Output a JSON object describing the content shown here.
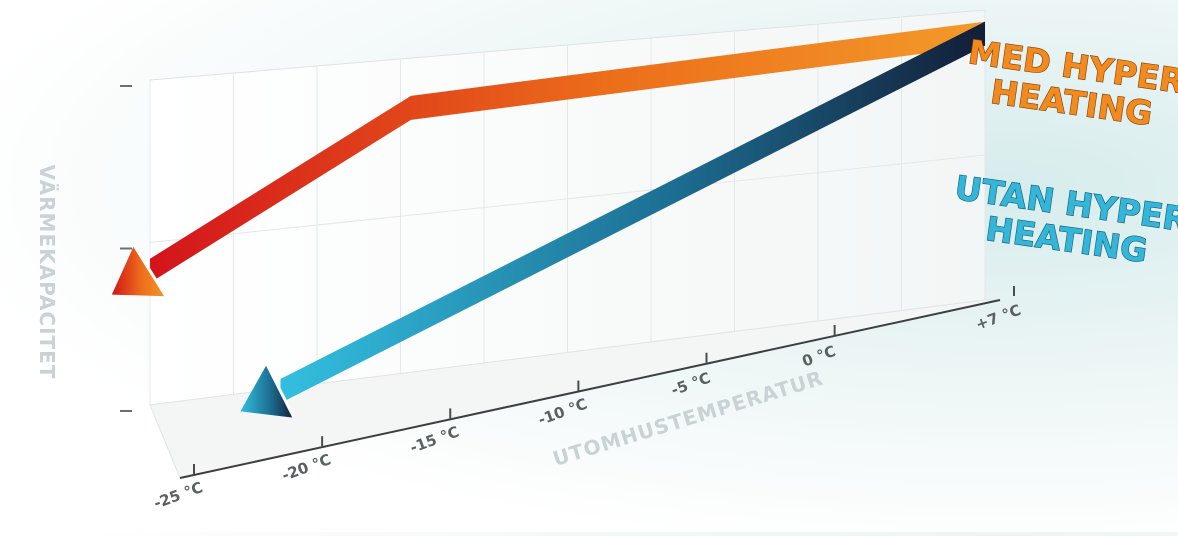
{
  "chart_data": {
    "type": "line",
    "title": "",
    "ylabel": "VÄRMEKAPACITET",
    "xlabel": "UTOMHUSTEMPERATUR",
    "x_ticks": [
      "-25 °C",
      "-20 °C",
      "-15 °C",
      "-10 °C",
      "-5 °C",
      "0 °C",
      "+7 °C"
    ],
    "x_values": [
      -25,
      -20,
      -15,
      -10,
      -5,
      0,
      7
    ],
    "xlim": [
      -25,
      7
    ],
    "ylim": [
      0,
      100
    ],
    "grid": true,
    "legend_placement": "right",
    "series": [
      {
        "name": "MED HYPER HEATING",
        "color": "#f28a1e",
        "color_end": "#d9141c",
        "x": [
          7,
          -15,
          -25
        ],
        "values": [
          96,
          88,
          45
        ]
      },
      {
        "name": "UTAN HYPER HEATING",
        "color": "#1a2a4a",
        "color_end": "#2ab4d6",
        "x": [
          7,
          -20
        ],
        "values": [
          96,
          3
        ]
      }
    ],
    "legend": [
      {
        "lines": [
          "MED HYPER",
          "HEATING"
        ],
        "color": "#f28a1e"
      },
      {
        "lines": [
          "UTAN HYPER",
          "HEATING"
        ],
        "color": "#35b5d8"
      }
    ]
  }
}
